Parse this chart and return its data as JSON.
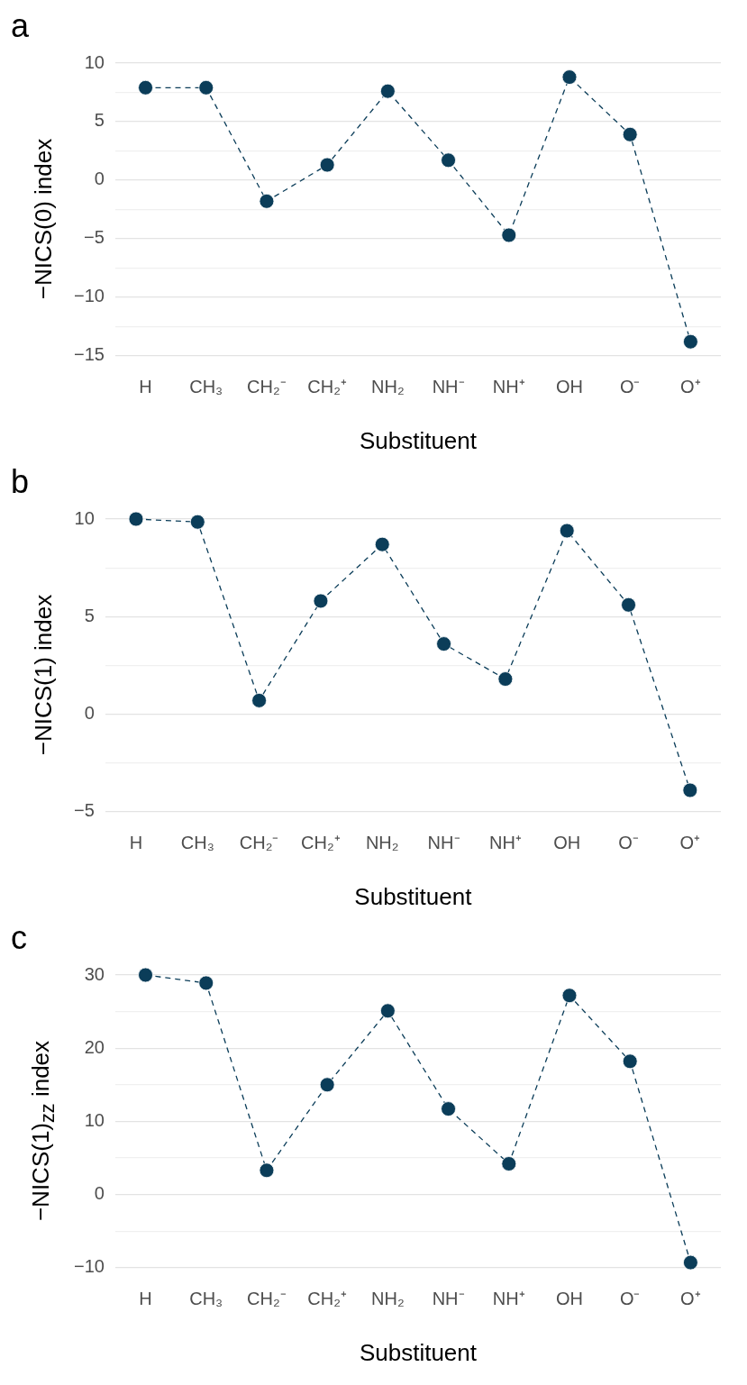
{
  "chart_data": [
    {
      "type": "line",
      "title": "a",
      "xlabel": "Substituent",
      "ylabel": "−NICS(0) index",
      "categories": [
        "H",
        "CH₃",
        "CH₂⁻",
        "CH₂⁺",
        "NH₂",
        "NH⁻",
        "NH⁺",
        "OH",
        "O⁻",
        "O⁺"
      ],
      "series": [
        {
          "color": "#0b3d59",
          "values": [
            7.9,
            7.9,
            -1.8,
            1.3,
            7.6,
            1.7,
            -4.7,
            8.8,
            3.9,
            -13.8
          ]
        }
      ],
      "ylim": [
        -15,
        10
      ],
      "yticks": [
        10,
        {
          "value": 7.5,
          "label": null
        },
        5,
        {
          "value": 2.5,
          "label": null
        },
        0,
        {
          "value": -2.5,
          "label": null
        },
        {
          "value": -5,
          "label": "−5"
        },
        {
          "value": -7.5,
          "label": null
        },
        {
          "value": -10,
          "label": "−10"
        },
        {
          "value": -12.5,
          "label": null
        },
        {
          "value": -15,
          "label": "−15"
        }
      ],
      "grid": "y",
      "legend": false,
      "marker": "circle",
      "line_style": "dashed"
    },
    {
      "type": "line",
      "title": "b",
      "xlabel": "Substituent",
      "ylabel": "−NICS(1) index",
      "categories": [
        "H",
        "CH₃",
        "CH₂⁻",
        "CH₂⁺",
        "NH₂",
        "NH⁻",
        "NH⁺",
        "OH",
        "O⁻",
        "O⁺"
      ],
      "series": [
        {
          "color": "#0b3d59",
          "values": [
            10,
            9.85,
            0.7,
            5.8,
            8.7,
            3.6,
            1.8,
            9.4,
            5.6,
            -3.9
          ]
        }
      ],
      "ylim": [
        -5,
        10
      ],
      "yticks": [
        10,
        {
          "value": 7.5,
          "label": null
        },
        5,
        {
          "value": 2.5,
          "label": null
        },
        0,
        {
          "value": -2.5,
          "label": null
        },
        {
          "value": -5,
          "label": "−5"
        }
      ],
      "grid": "y",
      "legend": false,
      "marker": "circle",
      "line_style": "dashed"
    },
    {
      "type": "line",
      "title": "c",
      "xlabel": "Substituent",
      "ylabel": "−NICS(1)$_{zz}$ index",
      "categories": [
        "H",
        "CH₃",
        "CH₂⁻",
        "CH₂⁺",
        "NH₂",
        "NH⁻",
        "NH⁺",
        "OH",
        "O⁻",
        "O⁺"
      ],
      "series": [
        {
          "color": "#0b3d59",
          "values": [
            30,
            28.9,
            3.3,
            15.0,
            25.1,
            11.7,
            4.2,
            27.2,
            18.2,
            -9.3
          ]
        }
      ],
      "ylim": [
        -10,
        30
      ],
      "yticks": [
        30,
        {
          "value": 25,
          "label": null
        },
        20,
        {
          "value": 15,
          "label": null
        },
        10,
        {
          "value": 5,
          "label": null
        },
        0,
        {
          "value": -5,
          "label": null
        },
        {
          "value": -10,
          "label": "−10"
        }
      ],
      "grid": "y",
      "legend": false,
      "marker": "circle",
      "line_style": "dashed"
    }
  ]
}
